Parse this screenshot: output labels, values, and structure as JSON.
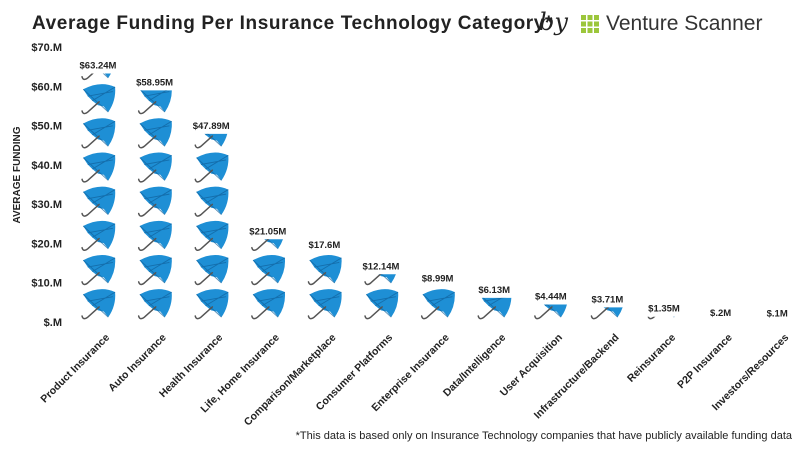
{
  "header": {
    "title": "Average Funding Per Insurance Technology Category*",
    "by": "by",
    "brand": "Venture Scanner",
    "logo_color": "#9cc63b"
  },
  "footnote": "*This data is based only on Insurance Technology companies that have publicly available funding data",
  "colors": {
    "umbrella": "#1e8fd5",
    "umbrella_dark": "#0f5f9a",
    "handle": "#555555",
    "axis_text": "#222222"
  },
  "chart_data": {
    "type": "bar",
    "pictogram_icon": "umbrella-icon",
    "pictogram_unit": 8.7,
    "title": "Average Funding Per Insurance Technology Category*",
    "xlabel": "",
    "ylabel": "AVERAGE FUNDING",
    "ylim": [
      0,
      70
    ],
    "yticks": [
      0,
      10,
      20,
      30,
      40,
      50,
      60,
      70
    ],
    "ytick_labels": [
      "$.M",
      "$10.M",
      "$20.M",
      "$30.M",
      "$40.M",
      "$50.M",
      "$60.M",
      "$70.M"
    ],
    "grid": false,
    "legend": "none",
    "categories": [
      "Product Insurance",
      "Auto Insurance",
      "Health Insurance",
      "Life, Home Insurance",
      "Comparison/Marketplace",
      "Consumer Platforms",
      "Enterprise Insurance",
      "Data/Intelligence",
      "User Acquisition",
      "Infrastructure/Backend",
      "Reinsurance",
      "P2P Insurance",
      "Investors/Resources"
    ],
    "values": [
      63.24,
      58.95,
      47.89,
      21.05,
      17.6,
      12.14,
      8.99,
      6.13,
      4.44,
      3.71,
      1.35,
      0.2,
      0.1
    ],
    "data_labels": [
      "$63.24M",
      "$58.95M",
      "$47.89M",
      "$21.05M",
      "$17.6M",
      "$12.14M",
      "$8.99M",
      "$6.13M",
      "$4.44M",
      "$3.71M",
      "$1.35M",
      "$.2M",
      "$.1M"
    ]
  }
}
